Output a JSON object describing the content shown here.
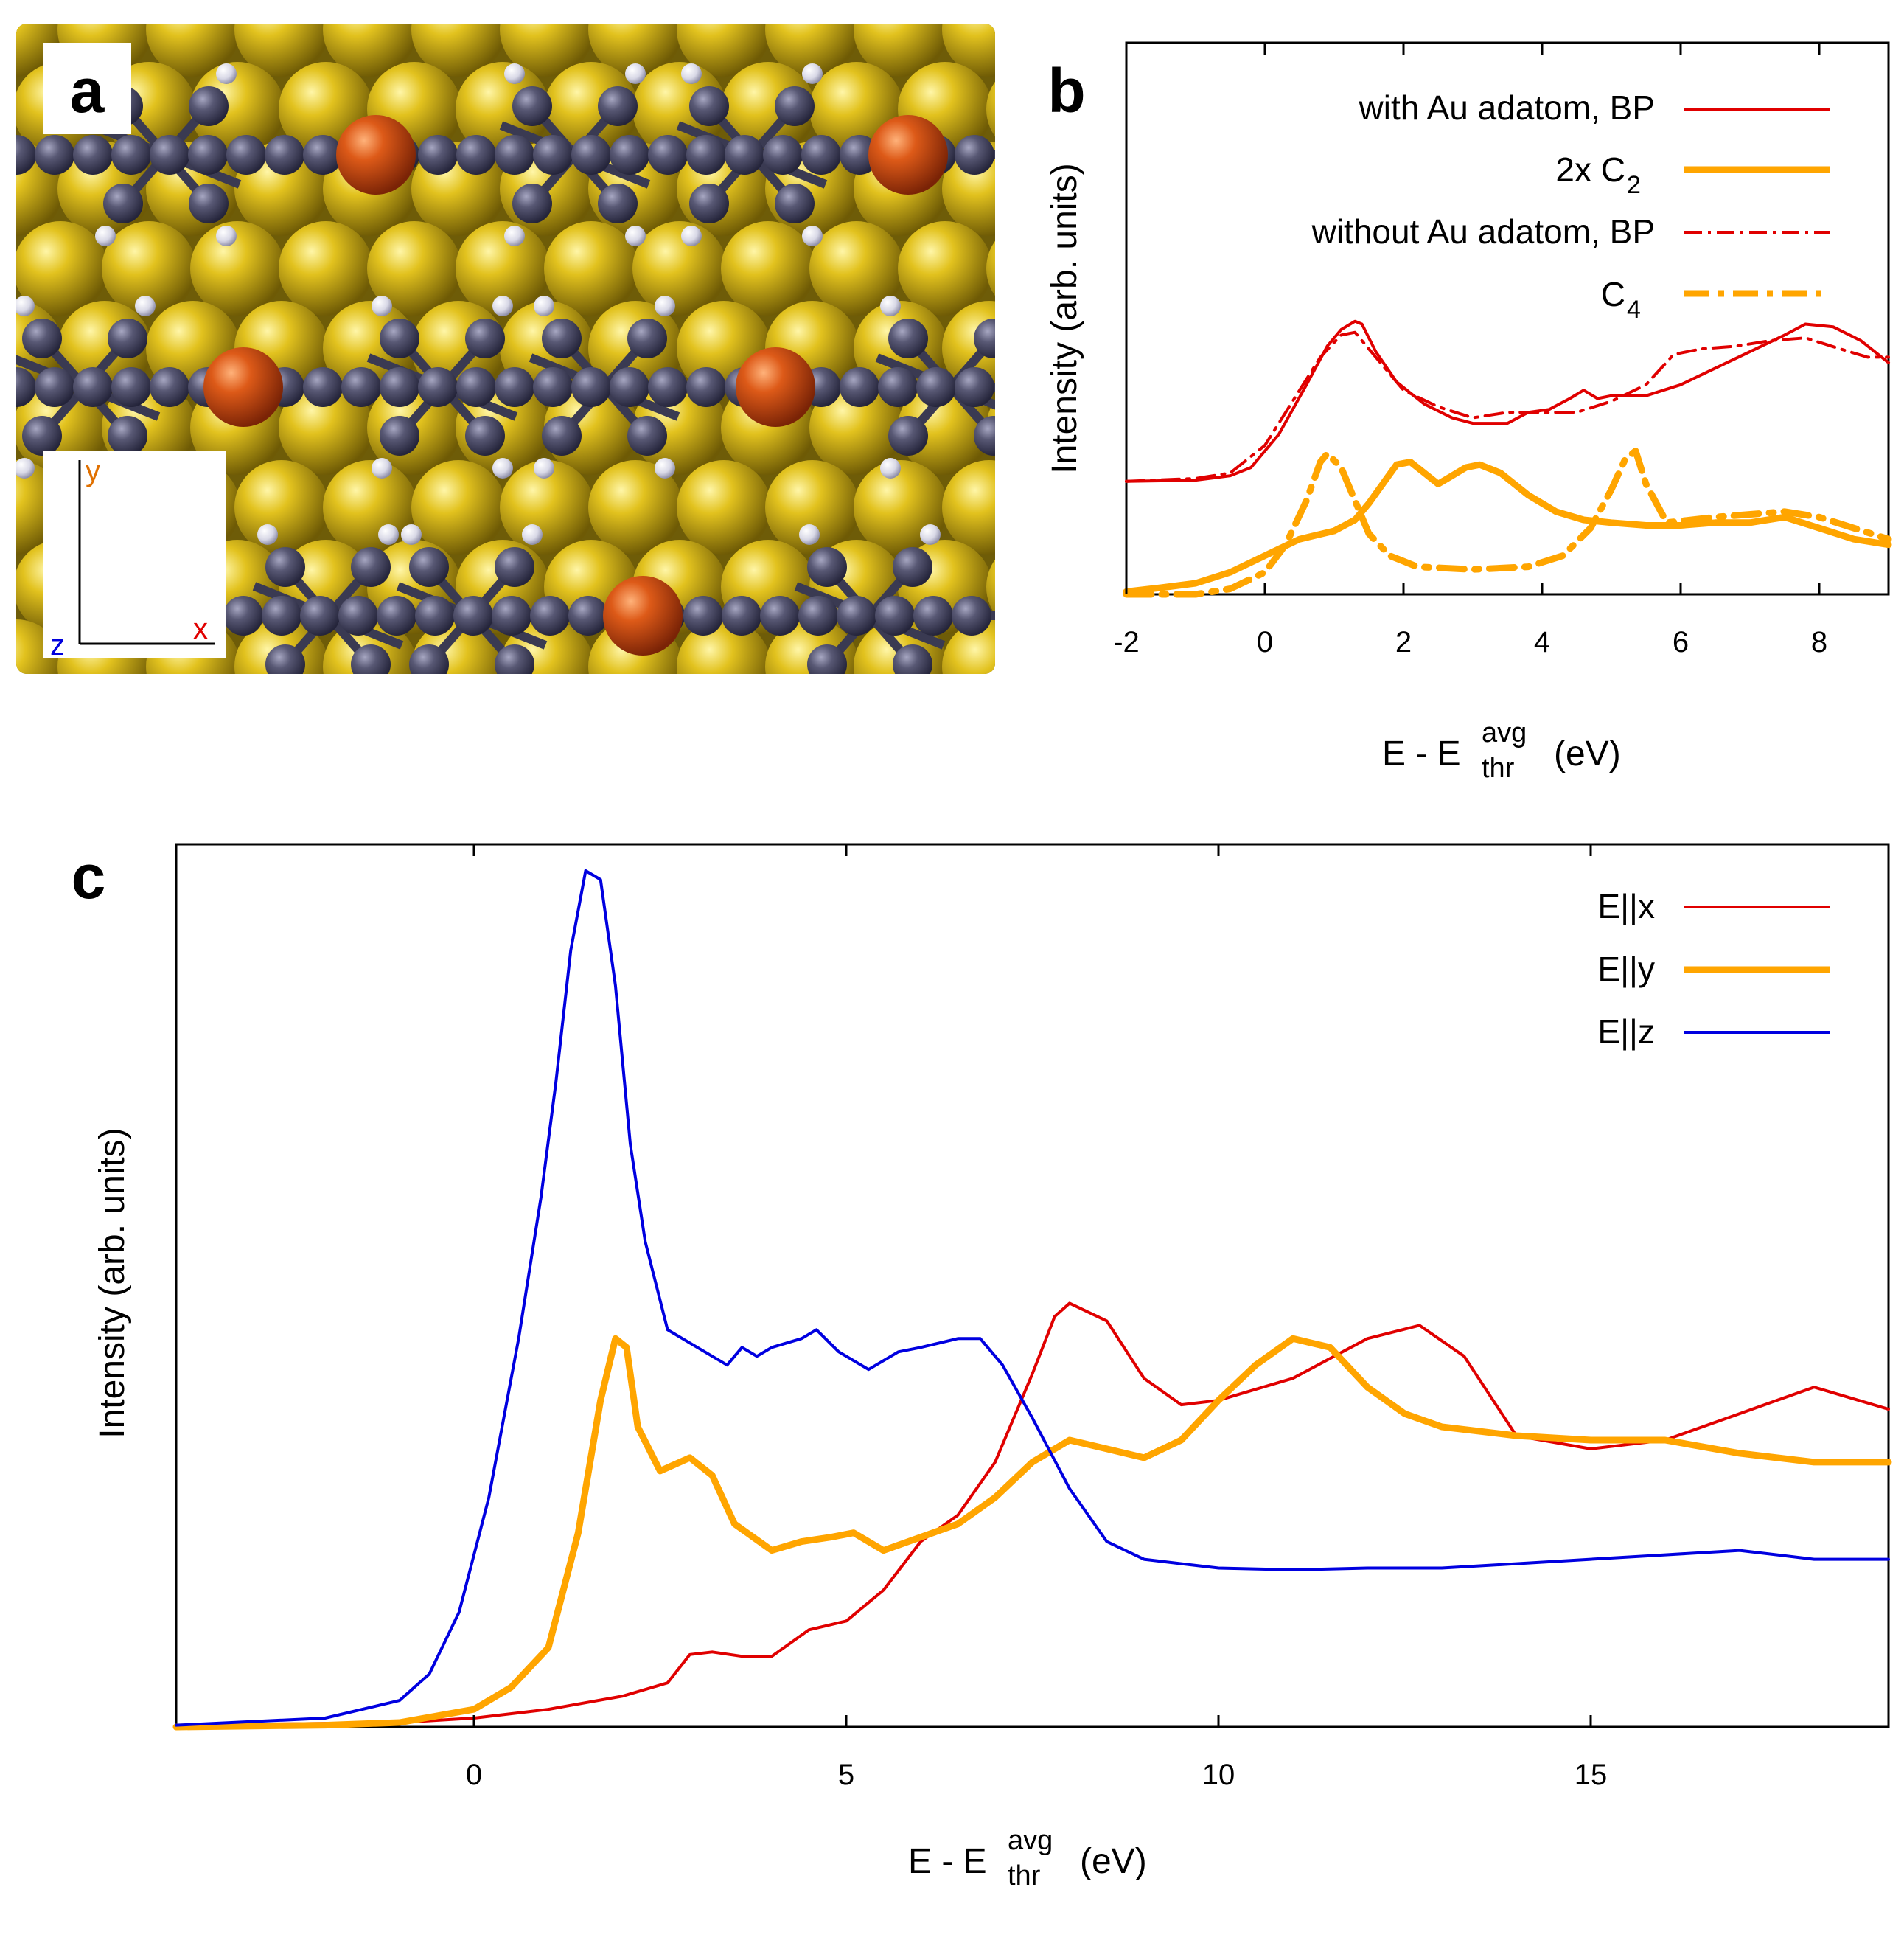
{
  "chart_data": [
    {
      "panel": "a",
      "type": "other",
      "panel_label": "a",
      "axes": {
        "y": "y",
        "x": "x",
        "z": "z"
      },
      "colors": {
        "gold": "#c9a91c",
        "carbon": "#54546e",
        "hydrogen": "#e6e6f0",
        "adatom": "#cc4b12",
        "axis_y": "#e07000",
        "axis_x": "#e00000",
        "axis_z": "#0000dd"
      }
    },
    {
      "panel": "b",
      "type": "line",
      "panel_label": "b",
      "xlabel": {
        "main": "E - E",
        "sup": "avg",
        "sub": "thr",
        "unit": "(eV)"
      },
      "ylabel": "Intensity (arb. units)",
      "xlim": [
        -2,
        9
      ],
      "ylim": [
        0,
        1
      ],
      "xticks": [
        -2,
        0,
        2,
        4,
        6,
        8
      ],
      "legend": [
        {
          "label": "with Au adatom, BP",
          "sub": "",
          "color": "#e00000",
          "style": "solid",
          "width": 4
        },
        {
          "label": "2x C",
          "sub": "2",
          "color": "#ffa500",
          "style": "solid",
          "width": 9
        },
        {
          "label": "without Au adatom, BP",
          "sub": "",
          "color": "#e00000",
          "style": "dashdot",
          "width": 4
        },
        {
          "label": "C",
          "sub": "4",
          "color": "#ffa500",
          "style": "dashdot",
          "width": 9
        }
      ],
      "series": [
        {
          "name": "with Au adatom, BP",
          "color": "#e00000",
          "style": "solid",
          "width": 4,
          "x": [
            -2,
            -1,
            -0.5,
            -0.2,
            0.2,
            0.6,
            0.9,
            1.1,
            1.3,
            1.4,
            1.6,
            1.9,
            2.3,
            2.7,
            3,
            3.5,
            3.8,
            4.1,
            4.4,
            4.6,
            4.8,
            5,
            5.5,
            6,
            6.5,
            7,
            7.5,
            7.8,
            8.2,
            8.6,
            9
          ],
          "y": [
            0.205,
            0.207,
            0.215,
            0.23,
            0.29,
            0.38,
            0.45,
            0.48,
            0.495,
            0.49,
            0.44,
            0.385,
            0.345,
            0.32,
            0.31,
            0.31,
            0.33,
            0.335,
            0.355,
            0.37,
            0.355,
            0.36,
            0.36,
            0.38,
            0.41,
            0.44,
            0.47,
            0.49,
            0.485,
            0.46,
            0.42
          ]
        },
        {
          "name": "without Au adatom, BP",
          "color": "#e00000",
          "style": "dashdot",
          "width": 4,
          "x": [
            -2,
            -1,
            -0.5,
            0,
            0.4,
            0.8,
            1.1,
            1.3,
            1.6,
            2,
            2.5,
            3,
            3.5,
            4,
            4.5,
            5,
            5.5,
            5.9,
            6.3,
            6.8,
            7.3,
            7.8,
            8.3,
            8.7,
            9
          ],
          "y": [
            0.205,
            0.21,
            0.22,
            0.27,
            0.35,
            0.43,
            0.47,
            0.475,
            0.43,
            0.37,
            0.34,
            0.32,
            0.33,
            0.33,
            0.33,
            0.35,
            0.38,
            0.435,
            0.445,
            0.45,
            0.46,
            0.465,
            0.445,
            0.43,
            0.43
          ]
        },
        {
          "name": "2x C2",
          "color": "#ffa500",
          "style": "solid",
          "width": 9,
          "x": [
            -2,
            -1.5,
            -1,
            -0.5,
            0,
            0.5,
            1,
            1.3,
            1.5,
            1.7,
            1.9,
            2.1,
            2.3,
            2.5,
            2.7,
            2.9,
            3.1,
            3.4,
            3.8,
            4.2,
            4.6,
            5,
            5.5,
            6,
            6.5,
            7,
            7.5,
            8,
            8.5,
            9
          ],
          "y": [
            0.005,
            0.012,
            0.02,
            0.04,
            0.07,
            0.1,
            0.115,
            0.135,
            0.165,
            0.2,
            0.235,
            0.24,
            0.22,
            0.2,
            0.215,
            0.23,
            0.235,
            0.22,
            0.18,
            0.15,
            0.135,
            0.13,
            0.125,
            0.125,
            0.13,
            0.13,
            0.14,
            0.12,
            0.1,
            0.09
          ]
        },
        {
          "name": "C4",
          "color": "#ffa500",
          "style": "dashdot",
          "width": 9,
          "x": [
            -2,
            -1,
            -0.5,
            0,
            0.3,
            0.6,
            0.8,
            0.9,
            1.1,
            1.3,
            1.5,
            1.8,
            2.2,
            3,
            3.8,
            4.3,
            4.7,
            5,
            5.2,
            5.35,
            5.5,
            5.8,
            6.5,
            7.5,
            8,
            8.5,
            9
          ],
          "y": [
            0,
            0,
            0.01,
            0.04,
            0.09,
            0.17,
            0.24,
            0.255,
            0.23,
            0.17,
            0.11,
            0.07,
            0.05,
            0.045,
            0.05,
            0.07,
            0.12,
            0.19,
            0.245,
            0.26,
            0.2,
            0.13,
            0.14,
            0.15,
            0.14,
            0.12,
            0.1
          ]
        }
      ]
    },
    {
      "panel": "c",
      "type": "line",
      "panel_label": "c",
      "xlabel": {
        "main": "E - E",
        "sup": "avg",
        "sub": "thr",
        "unit": "(eV)"
      },
      "ylabel": "Intensity (arb. units)",
      "xlim": [
        -4,
        19
      ],
      "ylim": [
        0,
        1
      ],
      "xticks": [
        0,
        5,
        10,
        15
      ],
      "legend": [
        {
          "label": "E||x",
          "color": "#e00000",
          "width": 4
        },
        {
          "label": "E||y",
          "color": "#ffa500",
          "width": 9
        },
        {
          "label": "E||z",
          "color": "#0000e0",
          "width": 4
        }
      ],
      "series": [
        {
          "name": "E||x",
          "color": "#e00000",
          "width": 4,
          "x": [
            -4,
            -1,
            0,
            1,
            2,
            2.6,
            2.9,
            3.2,
            3.6,
            4,
            4.5,
            5,
            5.5,
            6,
            6.5,
            7,
            7.5,
            7.8,
            8,
            8.5,
            9,
            9.5,
            10,
            11,
            12,
            12.7,
            13.3,
            14,
            15,
            16,
            17,
            18,
            19
          ],
          "y": [
            0.002,
            0.005,
            0.01,
            0.02,
            0.035,
            0.05,
            0.082,
            0.085,
            0.08,
            0.08,
            0.11,
            0.12,
            0.155,
            0.21,
            0.24,
            0.3,
            0.4,
            0.465,
            0.48,
            0.46,
            0.395,
            0.365,
            0.37,
            0.395,
            0.44,
            0.455,
            0.42,
            0.33,
            0.315,
            0.325,
            0.355,
            0.385,
            0.36
          ]
        },
        {
          "name": "E||y",
          "color": "#ffa500",
          "width": 9,
          "x": [
            -4,
            -2,
            -1,
            0,
            0.5,
            1,
            1.4,
            1.7,
            1.9,
            2.05,
            2.2,
            2.5,
            2.9,
            3.2,
            3.5,
            4,
            4.4,
            4.8,
            5.1,
            5.5,
            6,
            6.5,
            7,
            7.5,
            8,
            8.5,
            9,
            9.5,
            10,
            10.5,
            11,
            11.5,
            12,
            12.5,
            13,
            14,
            15,
            16,
            17,
            18,
            19
          ],
          "y": [
            0,
            0.002,
            0.005,
            0.02,
            0.045,
            0.09,
            0.22,
            0.37,
            0.44,
            0.43,
            0.34,
            0.29,
            0.305,
            0.285,
            0.23,
            0.2,
            0.21,
            0.215,
            0.22,
            0.2,
            0.215,
            0.23,
            0.26,
            0.3,
            0.325,
            0.315,
            0.305,
            0.325,
            0.37,
            0.41,
            0.44,
            0.43,
            0.385,
            0.355,
            0.34,
            0.33,
            0.325,
            0.325,
            0.31,
            0.3,
            0.3
          ]
        },
        {
          "name": "E||z",
          "color": "#0000e0",
          "width": 4,
          "x": [
            -4,
            -2,
            -1,
            -0.6,
            -0.2,
            0.2,
            0.6,
            0.9,
            1.1,
            1.3,
            1.5,
            1.7,
            1.9,
            2.1,
            2.3,
            2.6,
            3,
            3.4,
            3.6,
            3.8,
            4,
            4.4,
            4.6,
            4.9,
            5.3,
            5.7,
            6,
            6.5,
            6.8,
            7.1,
            7.5,
            8,
            8.5,
            9,
            9.5,
            10,
            11,
            12,
            13,
            14,
            15,
            16,
            17,
            18,
            19
          ],
          "y": [
            0.002,
            0.01,
            0.03,
            0.06,
            0.13,
            0.26,
            0.44,
            0.6,
            0.73,
            0.88,
            0.97,
            0.96,
            0.84,
            0.66,
            0.55,
            0.45,
            0.43,
            0.41,
            0.43,
            0.42,
            0.43,
            0.44,
            0.45,
            0.425,
            0.405,
            0.425,
            0.43,
            0.44,
            0.44,
            0.41,
            0.35,
            0.27,
            0.21,
            0.19,
            0.185,
            0.18,
            0.178,
            0.18,
            0.18,
            0.185,
            0.19,
            0.195,
            0.2,
            0.19,
            0.19
          ]
        }
      ]
    }
  ]
}
